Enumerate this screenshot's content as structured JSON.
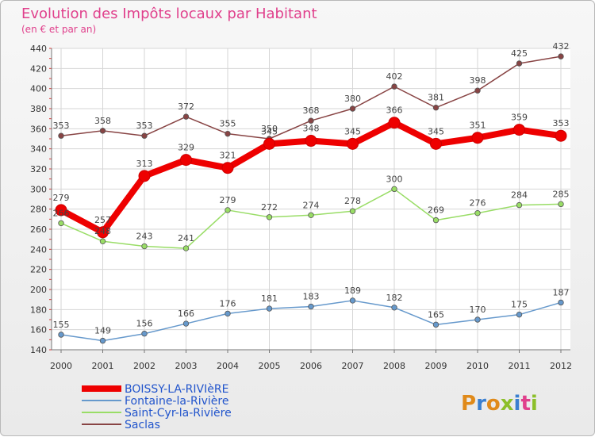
{
  "title": "Evolution des Impôts locaux par Habitant",
  "subtitle": "(en € et par an)",
  "logo_text": "Proxiti",
  "chart_data": {
    "type": "line",
    "title": "Evolution des Impôts locaux par Habitant",
    "subtitle": "(en € et par an)",
    "xlabel": "",
    "ylabel": "",
    "categories": [
      "2000",
      "2001",
      "2002",
      "2003",
      "2004",
      "2005",
      "2006",
      "2007",
      "2008",
      "2009",
      "2010",
      "2011",
      "2012"
    ],
    "ylim": [
      140,
      440
    ],
    "yticks": [
      140,
      160,
      180,
      200,
      220,
      240,
      260,
      280,
      300,
      320,
      340,
      360,
      380,
      400,
      420,
      440
    ],
    "grid": true,
    "legend_position": "bottom-left",
    "series": [
      {
        "name": "BOISSY-LA-RIVIèRE",
        "color": "#ee0000",
        "values": [
          279,
          257,
          313,
          329,
          321,
          345,
          348,
          345,
          366,
          345,
          351,
          359,
          353
        ]
      },
      {
        "name": "Fontaine-la-Rivière",
        "color": "#6699cc",
        "values": [
          155,
          149,
          156,
          166,
          176,
          181,
          183,
          189,
          182,
          165,
          170,
          175,
          187
        ]
      },
      {
        "name": "Saint-Cyr-la-Rivière",
        "color": "#99dd66",
        "values": [
          266,
          248,
          243,
          241,
          279,
          272,
          274,
          278,
          300,
          269,
          276,
          284,
          285
        ]
      },
      {
        "name": "Saclas",
        "color": "#884444",
        "values": [
          353,
          358,
          353,
          372,
          355,
          350,
          368,
          380,
          402,
          381,
          398,
          425,
          432
        ]
      }
    ]
  }
}
